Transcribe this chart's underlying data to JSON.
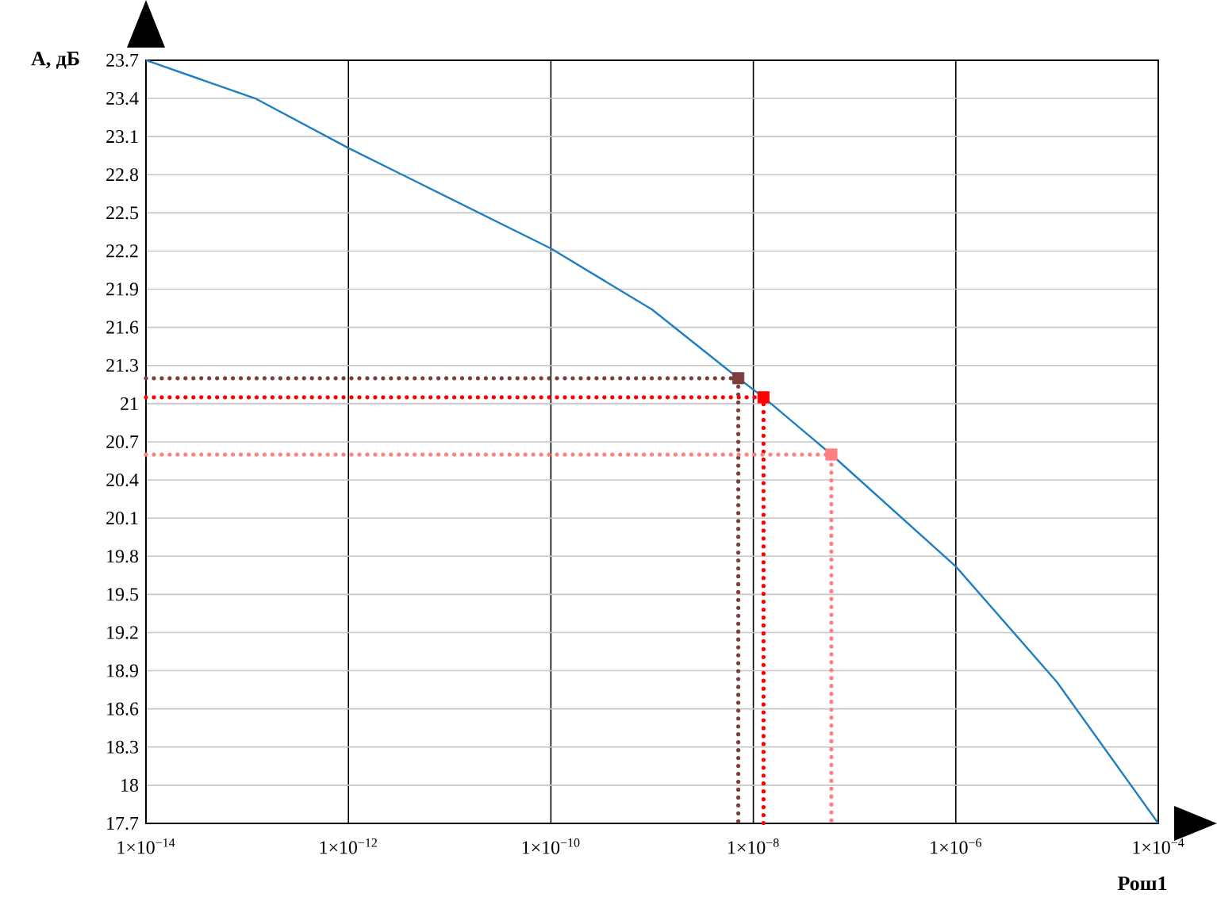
{
  "chart_data": {
    "type": "line",
    "xlabel": "Рош1",
    "ylabel": "A, дБ",
    "log": "x",
    "grid": true,
    "xlim": [
      1e-14,
      0.0001
    ],
    "ylim": [
      17.7,
      23.7
    ],
    "xticks": [
      {
        "value": 1e-14,
        "label": "1×10$^{−14}$"
      },
      {
        "value": 1e-12,
        "label": "1×10$^{−12}$"
      },
      {
        "value": 1e-10,
        "label": "1×10$^{−10}$"
      },
      {
        "value": 1e-08,
        "label": "1×10$^{−8}$"
      },
      {
        "value": 1e-06,
        "label": "1×10$^{−6}$"
      },
      {
        "value": 0.0001,
        "label": "1×10$^{−4}$"
      }
    ],
    "yticks": [
      17.7,
      18,
      18.3,
      18.6,
      18.9,
      19.2,
      19.5,
      19.8,
      20.1,
      20.4,
      20.7,
      21,
      21.3,
      21.6,
      21.9,
      22.2,
      22.5,
      22.8,
      23.1,
      23.4,
      23.7
    ],
    "series": [
      {
        "color": "#1f7fc0",
        "line_style": "solid",
        "marker": "none",
        "x": [
          1e-14,
          1.2e-13,
          1e-12,
          1e-10,
          1e-09,
          7.1e-09,
          1.26e-08,
          5.9e-08,
          1e-06,
          1e-05,
          0.0001
        ],
        "values": [
          23.7,
          23.4,
          23.01,
          22.22,
          21.74,
          21.2,
          21.05,
          20.6,
          19.72,
          18.81,
          17.7
        ]
      },
      {
        "type": "line",
        "color": "#7b3f3f",
        "line_style": "dotted",
        "marker": "none",
        "x": [
          1e-14,
          7.1e-09,
          7.1e-09
        ],
        "values": [
          21.2,
          21.2,
          17.7
        ]
      },
      {
        "type": "line",
        "color": "#ff0000",
        "line_style": "dotted",
        "marker": "none",
        "x": [
          1e-14,
          1.26e-08,
          1.26e-08
        ],
        "values": [
          21.05,
          21.05,
          17.7
        ]
      },
      {
        "type": "line",
        "color": "#ff8080",
        "line_style": "dotted",
        "marker": "none",
        "x": [
          1e-14,
          5.9e-08,
          5.9e-08
        ],
        "values": [
          20.6,
          20.6,
          17.7
        ]
      },
      {
        "type": "scatter",
        "marker": "square",
        "colors": [
          "#7b3f3f",
          "#ff0000",
          "#ff8080"
        ],
        "x": [
          7.1e-09,
          1.26e-08,
          5.9e-08
        ],
        "values": [
          21.2,
          21.05,
          20.6
        ]
      }
    ]
  }
}
